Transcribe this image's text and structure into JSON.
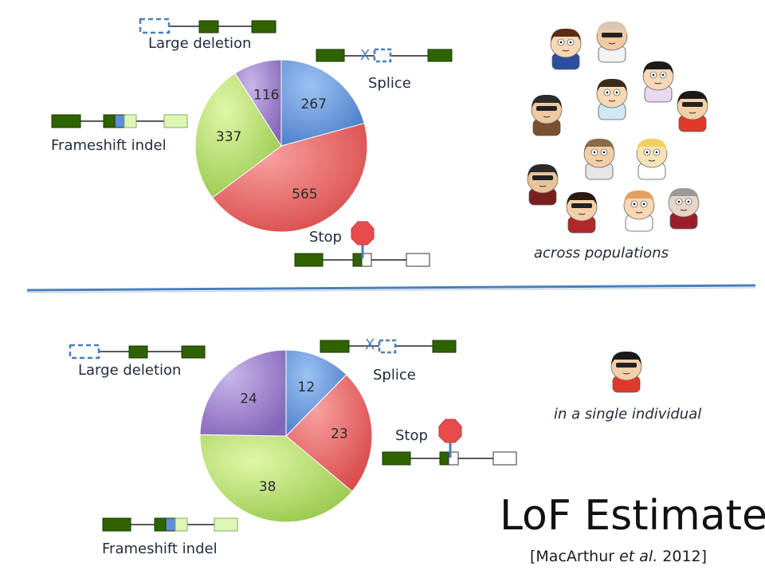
{
  "title": "LoF Estimates",
  "citation": {
    "open": "[MacArthur ",
    "etal": "et al.",
    "close": " 2012]"
  },
  "colors": {
    "blue": "#5b8fd9",
    "red": "#e55c5c",
    "green": "#a9d65a",
    "purple": "#9b82c7",
    "exon": "#2f6300",
    "divider": "#4a7fbb",
    "stop": "#e74c4c"
  },
  "chart_data": [
    {
      "type": "pie",
      "caption": "across populations",
      "categories": [
        "Splice",
        "Stop",
        "Frameshift indel",
        "Large deletion"
      ],
      "values": [
        267,
        565,
        337,
        116
      ],
      "labels": {
        "large_deletion": "Large deletion",
        "splice": "Splice",
        "frameshift": "Frameshift indel",
        "stop": "Stop"
      }
    },
    {
      "type": "pie",
      "caption": "in a single individual",
      "categories": [
        "Splice",
        "Stop",
        "Frameshift indel",
        "Large deletion"
      ],
      "values": [
        12,
        23,
        38,
        24
      ],
      "labels": {
        "large_deletion": "Large deletion",
        "splice": "Splice",
        "frameshift": "Frameshift indel",
        "stop": "Stop"
      }
    }
  ],
  "splice_mark": "X",
  "icons": {
    "population_avatars": "cartoon-avatar-icon",
    "individual_avatar": "cartoon-avatar-icon"
  }
}
